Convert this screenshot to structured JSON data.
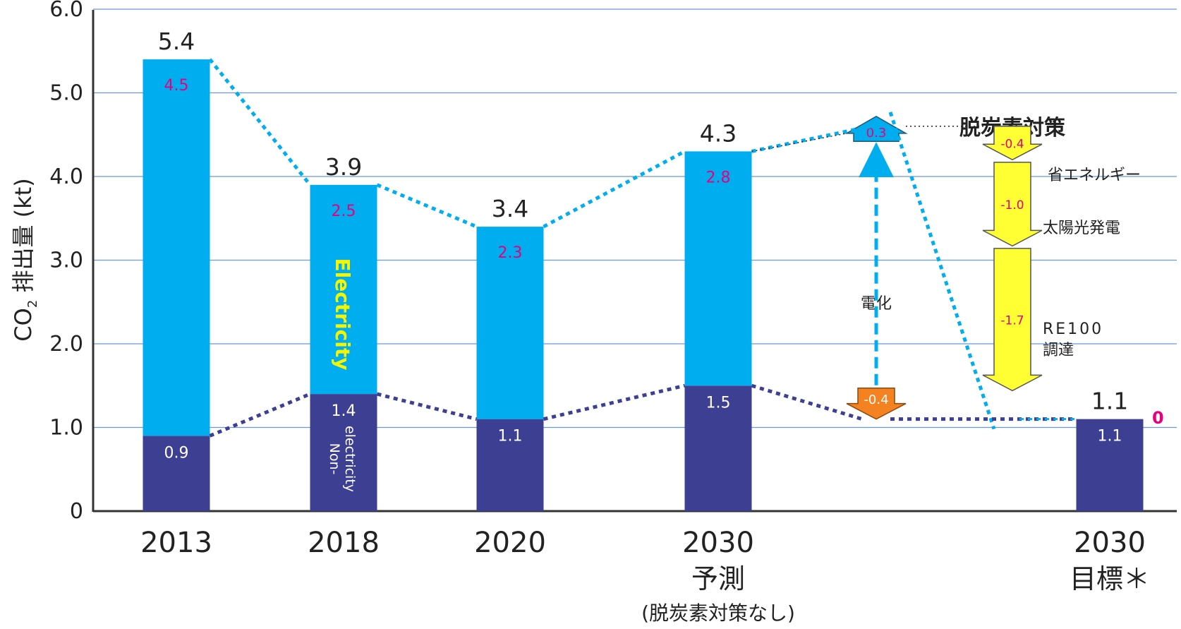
{
  "chart_data": {
    "type": "bar",
    "stacked": true,
    "ylabel_main": "CO",
    "ylabel_sub": "2",
    "ylabel_rest": " 排出量 (kt)",
    "ylim": [
      0,
      6
    ],
    "yticks": [
      "0",
      "1.0",
      "2.0",
      "3.0",
      "4.0",
      "5.0",
      "6.0"
    ],
    "grid": true,
    "categories": [
      {
        "line1": "2013",
        "line2": "",
        "line3": ""
      },
      {
        "line1": "2018",
        "line2": "",
        "line3": ""
      },
      {
        "line1": "2020",
        "line2": "",
        "line3": ""
      },
      {
        "line1": "2030",
        "line2": "予測",
        "line3": "(脱炭素対策なし)"
      },
      {
        "line1": "2030",
        "line2": "目標＊",
        "line3": ""
      }
    ],
    "series": [
      {
        "name": "Non-electricity",
        "color": "#3d3f93",
        "values": [
          0.9,
          1.4,
          1.1,
          1.5,
          1.1
        ],
        "labels": [
          "0.9",
          "1.4",
          "1.1",
          "1.5",
          "1.1"
        ]
      },
      {
        "name": "Electricity",
        "color": "#00aeef",
        "values": [
          4.5,
          2.5,
          2.3,
          2.8,
          0
        ],
        "labels": [
          "4.5",
          "2.5",
          "2.3",
          "2.8",
          "0"
        ]
      }
    ],
    "totals": [
      "5.4",
      "3.9",
      "3.4",
      "4.3",
      "1.1"
    ],
    "in_bar_labels": {
      "electricity": "Electricity",
      "non_electricity_1": "Non-",
      "non_electricity_2": "electricity"
    },
    "measures": {
      "title": "脱炭素対策",
      "electrification": {
        "label": "電化",
        "up": "0.3",
        "down": "-0.4",
        "up_value": 0.3,
        "down_value": -0.4
      },
      "steps": [
        {
          "value": "-0.4",
          "label": "省エネルギー",
          "label2": "",
          "amount": 0.4
        },
        {
          "value": "-1.0",
          "label": "太陽光発電",
          "label2": "",
          "amount": 1.0
        },
        {
          "value": "-1.7",
          "label": "RE100",
          "label2": "調達",
          "amount": 1.7
        }
      ]
    },
    "colors": {
      "electricity": "#00aeef",
      "non_electricity": "#3d3f93",
      "inner_label": "#e6007e",
      "electricity_text": "#f5f500",
      "arrow_yellow": "#ffff33",
      "arrow_orange": "#f58220",
      "grid": "#6699dd"
    }
  }
}
